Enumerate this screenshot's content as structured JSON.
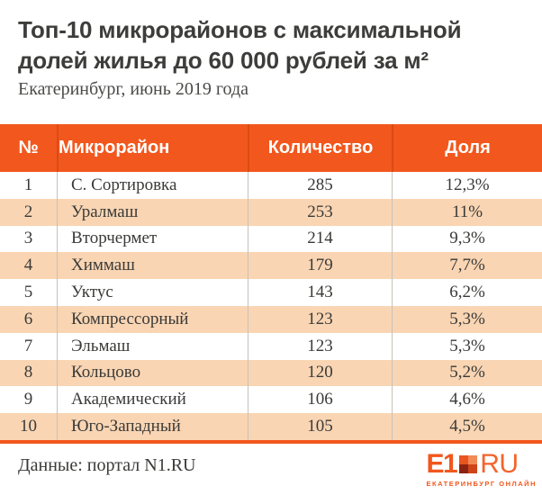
{
  "title": {
    "line1": "Топ-10 микрорайонов с максимальной",
    "line2": "долей жилья до 60 000 рублей за м²",
    "subtitle": "Екатеринбург, июнь 2019 года"
  },
  "table": {
    "headers": [
      "№",
      "Микрорайон",
      "Количество",
      "Доля"
    ],
    "rows": [
      {
        "num": "1",
        "district": "С. Сортировка",
        "count": "285",
        "share": "12,3%"
      },
      {
        "num": "2",
        "district": "Уралмаш",
        "count": "253",
        "share": "11%"
      },
      {
        "num": "3",
        "district": "Вторчермет",
        "count": "214",
        "share": "9,3%"
      },
      {
        "num": "4",
        "district": "Химмаш",
        "count": "179",
        "share": "7,7%"
      },
      {
        "num": "5",
        "district": "Уктус",
        "count": "143",
        "share": "6,2%"
      },
      {
        "num": "6",
        "district": "Компрессорный",
        "count": "123",
        "share": "5,3%"
      },
      {
        "num": "7",
        "district": "Эльмаш",
        "count": "123",
        "share": "5,3%"
      },
      {
        "num": "8",
        "district": "Кольцово",
        "count": "120",
        "share": "5,2%"
      },
      {
        "num": "9",
        "district": "Академический",
        "count": "106",
        "share": "4,6%"
      },
      {
        "num": "10",
        "district": "Юго-Западный",
        "count": "105",
        "share": "4,5%"
      }
    ]
  },
  "footer": {
    "source": "Данные: портал N1.RU",
    "logo": {
      "part1": "E1",
      "part2": "RU",
      "caption": "ЕКАТЕРИНБУРГ ОНЛАЙН"
    }
  },
  "colors": {
    "accent": "#F2571D",
    "row_alt": "#F9D5B3",
    "text": "#3A3A38",
    "body_divider": "#C6C1BB",
    "header_divider": "#D84C13"
  },
  "chart_data": {
    "type": "table",
    "title": "Топ-10 микрорайонов с максимальной долей жилья до 60 000 рублей за м²",
    "subtitle": "Екатеринбург, июнь 2019 года",
    "columns": [
      "№",
      "Микрорайон",
      "Количество",
      "Доля"
    ],
    "rows": [
      [
        1,
        "С. Сортировка",
        285,
        "12,3%"
      ],
      [
        2,
        "Уралмаш",
        253,
        "11%"
      ],
      [
        3,
        "Вторчермет",
        214,
        "9,3%"
      ],
      [
        4,
        "Химмаш",
        179,
        "7,7%"
      ],
      [
        5,
        "Уктус",
        143,
        "6,2%"
      ],
      [
        6,
        "Компрессорный",
        123,
        "5,3%"
      ],
      [
        7,
        "Эльмаш",
        123,
        "5,3%"
      ],
      [
        8,
        "Кольцово",
        120,
        "5,2%"
      ],
      [
        9,
        "Академический",
        106,
        "4,6%"
      ],
      [
        10,
        "Юго-Западный",
        105,
        "4,5%"
      ]
    ],
    "source": "Данные: портал N1.RU"
  }
}
